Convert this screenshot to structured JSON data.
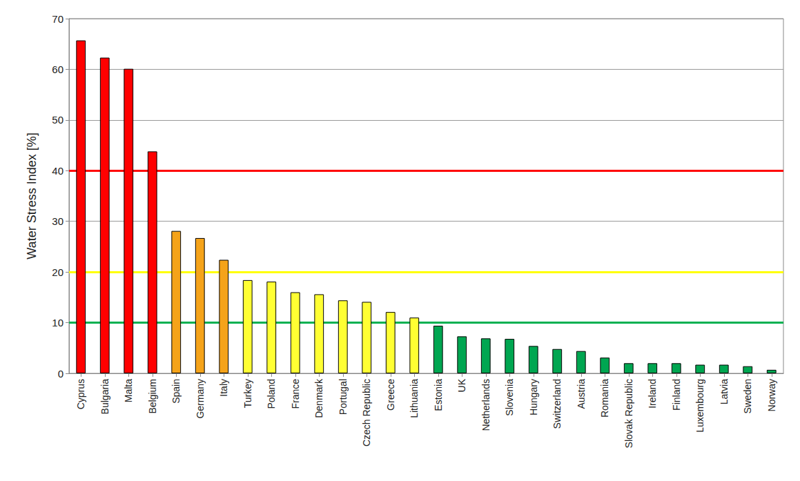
{
  "chart_data": {
    "type": "bar",
    "y_label": "Water Stress Index [%]",
    "categories": [
      "Cyprus",
      "Bulgaria",
      "Malta",
      "Belgium",
      "Spain",
      "Germany",
      "Italy",
      "Turkey",
      "Poland",
      "France",
      "Denmark",
      "Portugal",
      "Czech Republic",
      "Greece",
      "Lithuania",
      "Estonia",
      "UK",
      "Netherlands",
      "Slovenia",
      "Hungary",
      "Switzerland",
      "Austria",
      "Romania",
      "Slovak Republic",
      "Ireland",
      "Finland",
      "Luxembourg",
      "Latvia",
      "Sweden",
      "Norway"
    ],
    "values": [
      65.7,
      62.3,
      60.1,
      43.8,
      28.1,
      26.7,
      22.4,
      18.4,
      18.1,
      16.0,
      15.6,
      14.4,
      14.1,
      12.1,
      11.0,
      9.4,
      7.3,
      6.9,
      6.8,
      5.4,
      4.8,
      4.4,
      3.1,
      2.0,
      2.0,
      2.0,
      1.7,
      1.7,
      1.4,
      0.7
    ],
    "colors": [
      "#ff0000",
      "#ff0000",
      "#ff0000",
      "#ff0000",
      "#f5a31a",
      "#f5a31a",
      "#f5a31a",
      "#ffff33",
      "#ffff33",
      "#ffff33",
      "#ffff33",
      "#ffff33",
      "#ffff33",
      "#ffff33",
      "#ffff33",
      "#00a651",
      "#00a651",
      "#00a651",
      "#00a651",
      "#00a651",
      "#00a651",
      "#00a651",
      "#00a651",
      "#00a651",
      "#00a651",
      "#00a651",
      "#00a651",
      "#00a651",
      "#00a651",
      "#00a651"
    ],
    "reference_lines": [
      {
        "value": 40,
        "color": "#ff0000"
      },
      {
        "value": 20,
        "color": "#ffff00"
      },
      {
        "value": 10,
        "color": "#00b050"
      }
    ],
    "ylim": [
      0,
      70
    ],
    "yticks": [
      0,
      10,
      20,
      30,
      40,
      50,
      60,
      70
    ],
    "grid": true
  }
}
